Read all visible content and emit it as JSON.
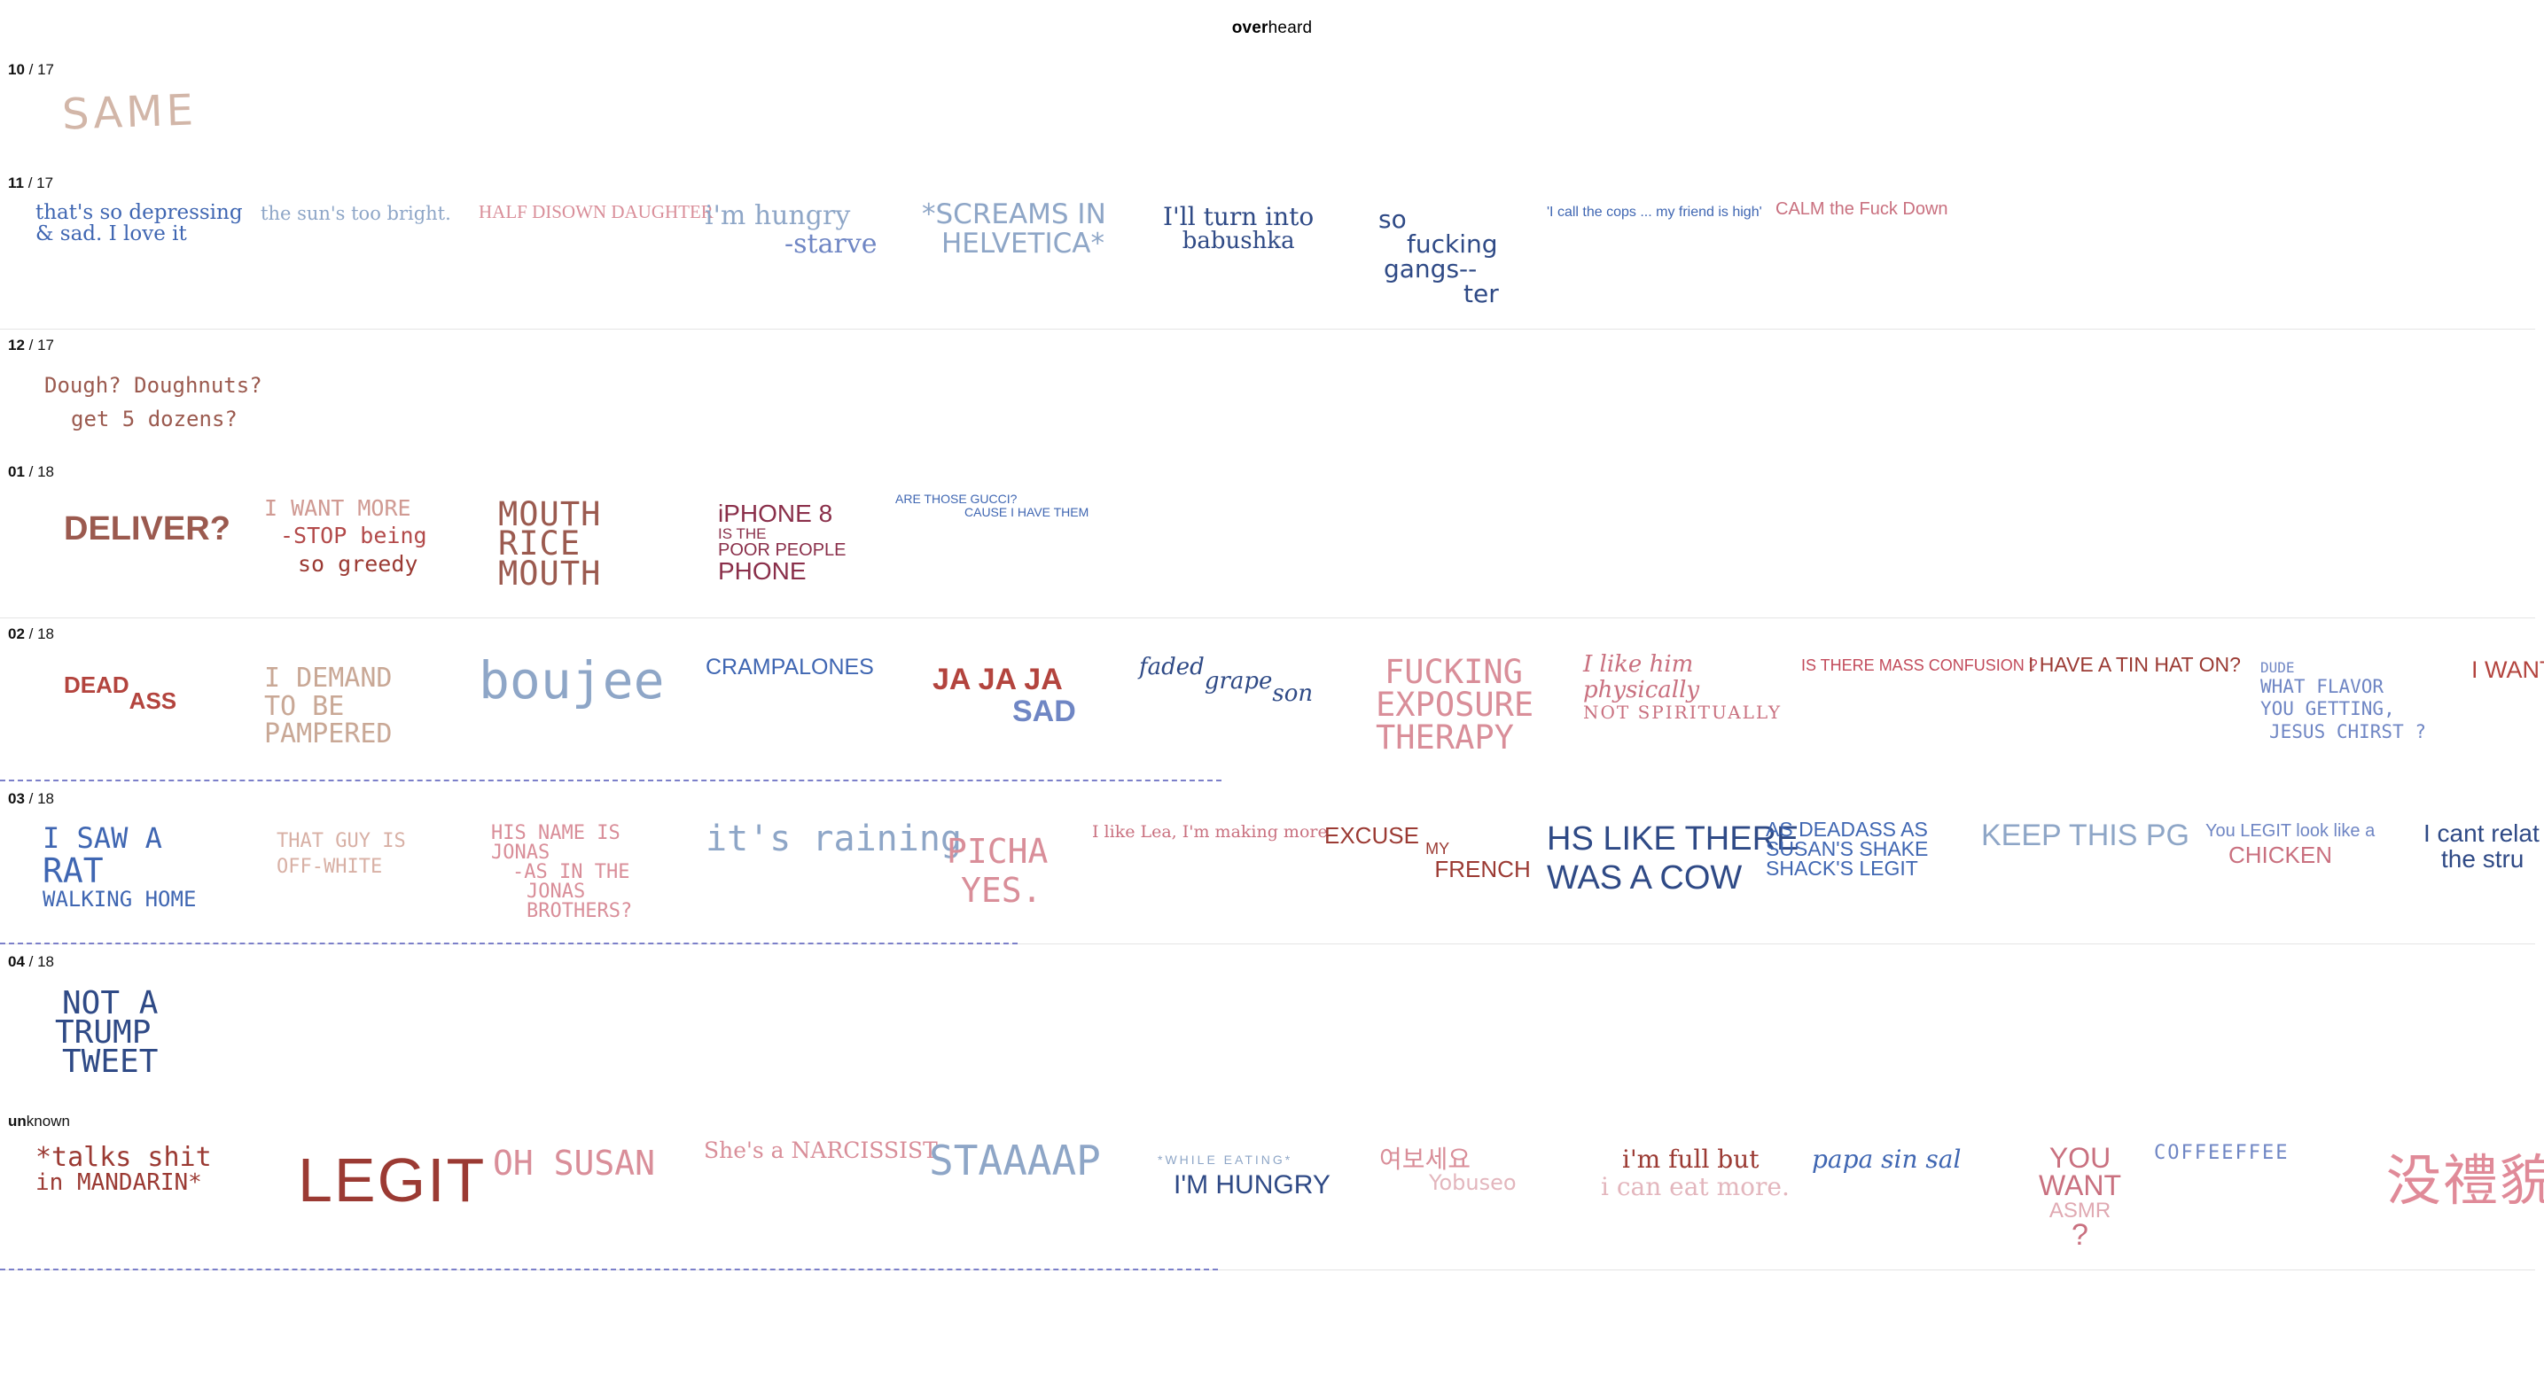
{
  "site": {
    "title_bold": "over",
    "title_rest": "heard"
  },
  "colors": {
    "light_brown": "#c9a896",
    "brown": "#9b5a4f",
    "dark_red": "#9b3a33",
    "pink": "#d98e99",
    "rose": "#c9707f",
    "light_blue": "#8ea6c7",
    "blue": "#3f66b2",
    "navy": "#2f4a86",
    "periwinkle": "#6f86c4",
    "dash_line": "#7b7fc9"
  },
  "sections": [
    {
      "month": "10",
      "year": "17",
      "phrases": [
        {
          "lines": [
            "SAME"
          ]
        }
      ]
    },
    {
      "month": "11",
      "year": "17",
      "phrases": [
        {
          "lines": [
            "that's so depressing",
            "& sad. I love it"
          ]
        },
        {
          "lines": [
            "the sun's too bright."
          ]
        },
        {
          "lines": [
            "HALF DISOWN DAUGHTER"
          ]
        },
        {
          "lines": [
            "i'm hungry",
            "-starve"
          ]
        },
        {
          "lines": [
            "*SCREAMS IN",
            "HELVETICA*"
          ]
        },
        {
          "lines": [
            "I'll turn into",
            "babushka"
          ]
        },
        {
          "lines": [
            "so",
            "fucking",
            "gangs--",
            "ter"
          ]
        },
        {
          "lines": [
            "'I call the cops ... my friend is high'"
          ]
        },
        {
          "lines": [
            "CALM the Fuck Down"
          ]
        }
      ]
    },
    {
      "month": "12",
      "year": "17",
      "phrases": [
        {
          "lines": [
            "Dough? Doughnuts?",
            "get 5 dozens?"
          ]
        }
      ]
    },
    {
      "month": "01",
      "year": "18",
      "phrases": [
        {
          "lines": [
            "DELIVER?"
          ]
        },
        {
          "lines": [
            "I WANT MORE",
            "-STOP being",
            "so greedy"
          ]
        },
        {
          "lines": [
            "MOUTH",
            "RICE",
            "MOUTH"
          ]
        },
        {
          "lines": [
            "iPHONE 8",
            "IS THE",
            "POOR PEOPLE",
            "PHONE"
          ]
        },
        {
          "lines": [
            "ARE THOSE GUCCI?",
            "CAUSE I HAVE THEM"
          ]
        }
      ]
    },
    {
      "month": "02",
      "year": "18",
      "phrases": [
        {
          "lines": [
            "DEAD",
            "ASS"
          ]
        },
        {
          "lines": [
            "I DEMAND",
            "TO BE",
            "PAMPERED"
          ]
        },
        {
          "lines": [
            "boujee"
          ]
        },
        {
          "lines": [
            "CRAMPALONES"
          ]
        },
        {
          "lines": [
            "JA JA JA",
            "SAD"
          ]
        },
        {
          "lines": [
            "faded",
            "grape",
            "son"
          ]
        },
        {
          "lines": [
            "FUCKING",
            "EXPOSURE",
            "THERAPY"
          ]
        },
        {
          "lines": [
            "I like him",
            "physically",
            "NOT SPIRITUALLY"
          ]
        },
        {
          "lines": [
            "IS THERE MASS CONFUSION ?"
          ]
        },
        {
          "lines": [
            "I HAVE A TIN HAT ON?"
          ]
        },
        {
          "lines": [
            "DUDE",
            "WHAT FLAVOR",
            "YOU GETTING,",
            "JESUS CHIRST ?"
          ]
        },
        {
          "lines": [
            "I WANT"
          ]
        }
      ]
    },
    {
      "month": "03",
      "year": "18",
      "phrases": [
        {
          "lines": [
            "I SAW A",
            "RAT",
            "WALKING HOME"
          ]
        },
        {
          "lines": [
            "THAT GUY IS",
            "OFF-WHITE"
          ]
        },
        {
          "lines": [
            "HIS NAME IS",
            "JONAS",
            "-AS IN THE",
            "JONAS",
            "BROTHERS?"
          ]
        },
        {
          "lines": [
            "it's raining"
          ]
        },
        {
          "lines": [
            "PICHA",
            "YES."
          ]
        },
        {
          "lines": [
            "I like Lea, I'm making more"
          ]
        },
        {
          "lines": [
            "EXCUSE",
            "MY",
            "FRENCH"
          ]
        },
        {
          "lines": [
            "HS LIKE THERE",
            "WAS A COW"
          ]
        },
        {
          "lines": [
            "AS DEADASS AS",
            "SUSAN'S SHAKE",
            "SHACK'S LEGIT"
          ]
        },
        {
          "lines": [
            "KEEP THIS PG"
          ]
        },
        {
          "lines": [
            "You LEGIT look like a",
            "CHICKEN"
          ]
        },
        {
          "lines": [
            "I cant relat",
            "the stru"
          ]
        }
      ]
    },
    {
      "month": "04",
      "year": "18",
      "phrases": [
        {
          "lines": [
            "NOT A",
            "TRUMP",
            "TWEET"
          ]
        }
      ]
    },
    {
      "label_bold": "un",
      "label_rest": "known",
      "phrases": [
        {
          "lines": [
            "*talks shit",
            "in MANDARIN*"
          ]
        },
        {
          "lines": [
            "LEGIT"
          ]
        },
        {
          "lines": [
            "OH SUSAN"
          ]
        },
        {
          "lines": [
            "She's a NARCISSIST"
          ]
        },
        {
          "lines": [
            "STAAAAP"
          ]
        },
        {
          "lines": [
            "*WHILE EATING*",
            "I'M HUNGRY"
          ]
        },
        {
          "lines": [
            "여보세요",
            "Yobuseo"
          ]
        },
        {
          "lines": [
            "i'm full but",
            "i can eat more."
          ]
        },
        {
          "lines": [
            "papa sin sal"
          ]
        },
        {
          "lines": [
            "YOU",
            "WANT",
            "ASMR",
            "?"
          ]
        },
        {
          "lines": [
            "COFFEEFFEE"
          ]
        },
        {
          "lines": [
            "没禮貌"
          ]
        }
      ]
    }
  ]
}
